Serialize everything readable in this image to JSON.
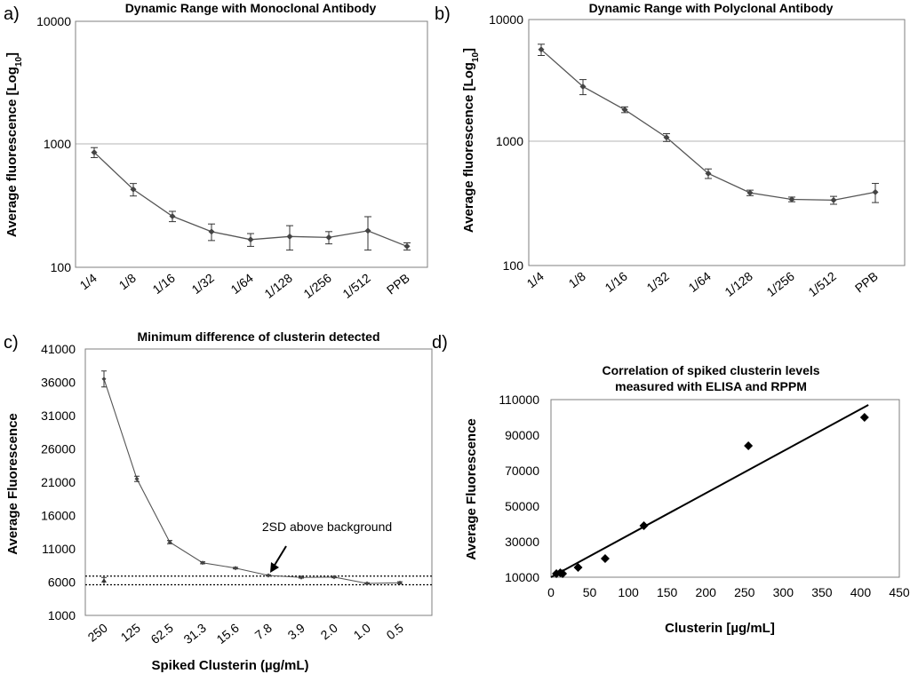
{
  "figure": {
    "panels": [
      {
        "letter": "a)"
      },
      {
        "letter": "b)"
      },
      {
        "letter": "c)"
      },
      {
        "letter": "d)"
      }
    ]
  },
  "chart_data": [
    {
      "type": "line",
      "title": "Dynamic Range with Monoclonal Antibody",
      "xlabel": "",
      "ylabel_main": "Average fluorescence [Log",
      "ylabel_sub": "10",
      "ylabel_tail": "]",
      "yscale": "log",
      "ylim": [
        100,
        10000
      ],
      "yticks": [
        "100",
        "1000",
        "10000"
      ],
      "grid": "horizontal line at 1000",
      "categories": [
        "1/4",
        "1/8",
        "1/16",
        "1/32",
        "1/64",
        "1/128",
        "1/256",
        "1/512",
        "PPB"
      ],
      "series": [
        {
          "values": [
            860,
            430,
            260,
            195,
            168,
            178,
            175,
            198,
            148
          ],
          "errors": [
            80,
            50,
            25,
            30,
            20,
            40,
            20,
            60,
            10
          ]
        }
      ]
    },
    {
      "type": "line",
      "title": "Dynamic Range with Polyclonal Antibody",
      "xlabel": "",
      "ylabel_main": "Average fluorescence [Log",
      "ylabel_sub": "10",
      "ylabel_tail": "]",
      "yscale": "log",
      "ylim": [
        100,
        10000
      ],
      "yticks": [
        "100",
        "1000",
        "10000"
      ],
      "grid": "horizontal line at 1000",
      "categories": [
        "1/4",
        "1/8",
        "1/16",
        "1/32",
        "1/64",
        "1/128",
        "1/256",
        "1/512",
        "PPB"
      ],
      "series": [
        {
          "values": [
            5700,
            2850,
            1850,
            1100,
            560,
            390,
            345,
            340,
            395
          ],
          "errors": [
            600,
            400,
            100,
            80,
            50,
            20,
            15,
            25,
            70
          ]
        }
      ]
    },
    {
      "type": "line",
      "title": "Minimum difference of clusterin detected",
      "xlabel": "Spiked Clusterin (µg/mL)",
      "ylabel": "Average Fluorescence",
      "ylim": [
        1000,
        41000
      ],
      "yticks": [
        "1000",
        "6000",
        "11000",
        "16000",
        "21000",
        "26000",
        "31000",
        "36000",
        "41000"
      ],
      "categories": [
        "250",
        "125",
        "62.5",
        "31.3",
        "15.6",
        "7.8",
        "3.9",
        "2.0",
        "1.0",
        "0.5"
      ],
      "series": [
        {
          "values": [
            36500,
            21500,
            12000,
            8900,
            8100,
            7000,
            6700,
            6750,
            5800,
            5900
          ],
          "errors": [
            1200,
            400,
            250,
            150,
            120,
            100,
            100,
            100,
            100,
            150
          ]
        }
      ],
      "background_point": {
        "category": "250",
        "value": 6200,
        "error": 500
      },
      "dotted_lines": [
        6900,
        5600
      ],
      "annotation": "2SD above background",
      "annotation_target": {
        "category": "7.8",
        "value": 7000
      }
    },
    {
      "type": "scatter",
      "title_line1": "Correlation of spiked clusterin levels",
      "title_line2": "measured with ELISA and RPPM",
      "xlabel": "Clusterin [µg/mL]",
      "ylabel": "Average Fluorescence",
      "xlim": [
        0,
        450
      ],
      "ylim": [
        10000,
        110000
      ],
      "xticks": [
        "0",
        "50",
        "100",
        "150",
        "200",
        "250",
        "300",
        "350",
        "400",
        "450"
      ],
      "yticks": [
        "10000",
        "30000",
        "50000",
        "70000",
        "90000",
        "110000"
      ],
      "points": [
        {
          "x": 7,
          "y": 12000
        },
        {
          "x": 12,
          "y": 12500
        },
        {
          "x": 15,
          "y": 12000
        },
        {
          "x": 35,
          "y": 15500
        },
        {
          "x": 70,
          "y": 20500
        },
        {
          "x": 120,
          "y": 39000
        },
        {
          "x": 255,
          "y": 84000
        },
        {
          "x": 405,
          "y": 100000
        }
      ],
      "trendline": [
        {
          "x": 0,
          "y": 10000
        },
        {
          "x": 410,
          "y": 107000
        }
      ]
    }
  ]
}
